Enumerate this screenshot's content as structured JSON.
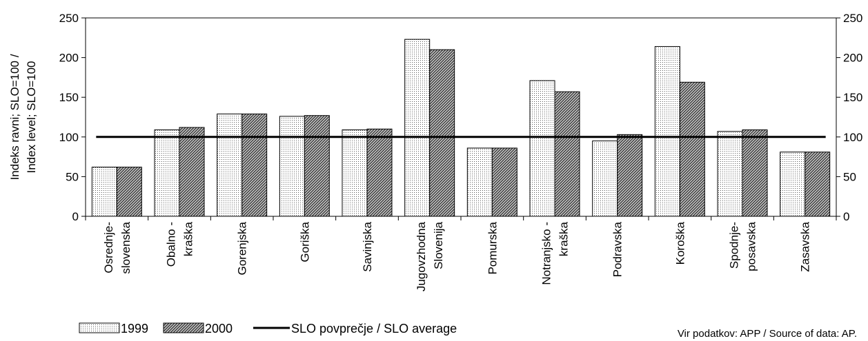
{
  "chart_data": {
    "type": "bar",
    "categories": [
      [
        "Osrednje-",
        "slovenska"
      ],
      [
        "Obalno -",
        "kraška"
      ],
      [
        "Gorenjska"
      ],
      [
        "Goriška"
      ],
      [
        "Savinjska"
      ],
      [
        "Jugovzhodna",
        "Slovenija"
      ],
      [
        "Pomurska"
      ],
      [
        "Notranjsko -",
        "kraška"
      ],
      [
        "Podravska"
      ],
      [
        "Koroška"
      ],
      [
        "Spodnje-",
        "posavska"
      ],
      [
        "Zasavska"
      ]
    ],
    "series": [
      {
        "name": "1999",
        "pattern": "dots",
        "values": [
          62,
          109,
          129,
          126,
          109,
          223,
          86,
          171,
          95,
          214,
          107,
          81
        ]
      },
      {
        "name": "2000",
        "pattern": "hatch",
        "values": [
          62,
          112,
          129,
          127,
          110,
          210,
          86,
          157,
          103,
          169,
          109,
          81
        ]
      }
    ],
    "reference_line": {
      "name": "SLO povprečje / SLO average",
      "value": 100
    },
    "ylabel": [
      "Indeks ravni; SLO=100 /",
      "Index level; SLO=100"
    ],
    "ylim": [
      0,
      250
    ],
    "yticks": [
      0,
      50,
      100,
      150,
      200,
      250
    ],
    "grid": false,
    "secondary_y_axis": true,
    "legend_position": "bottom-left",
    "source_note": "Vir podatkov: APP / Source of data: AP."
  }
}
